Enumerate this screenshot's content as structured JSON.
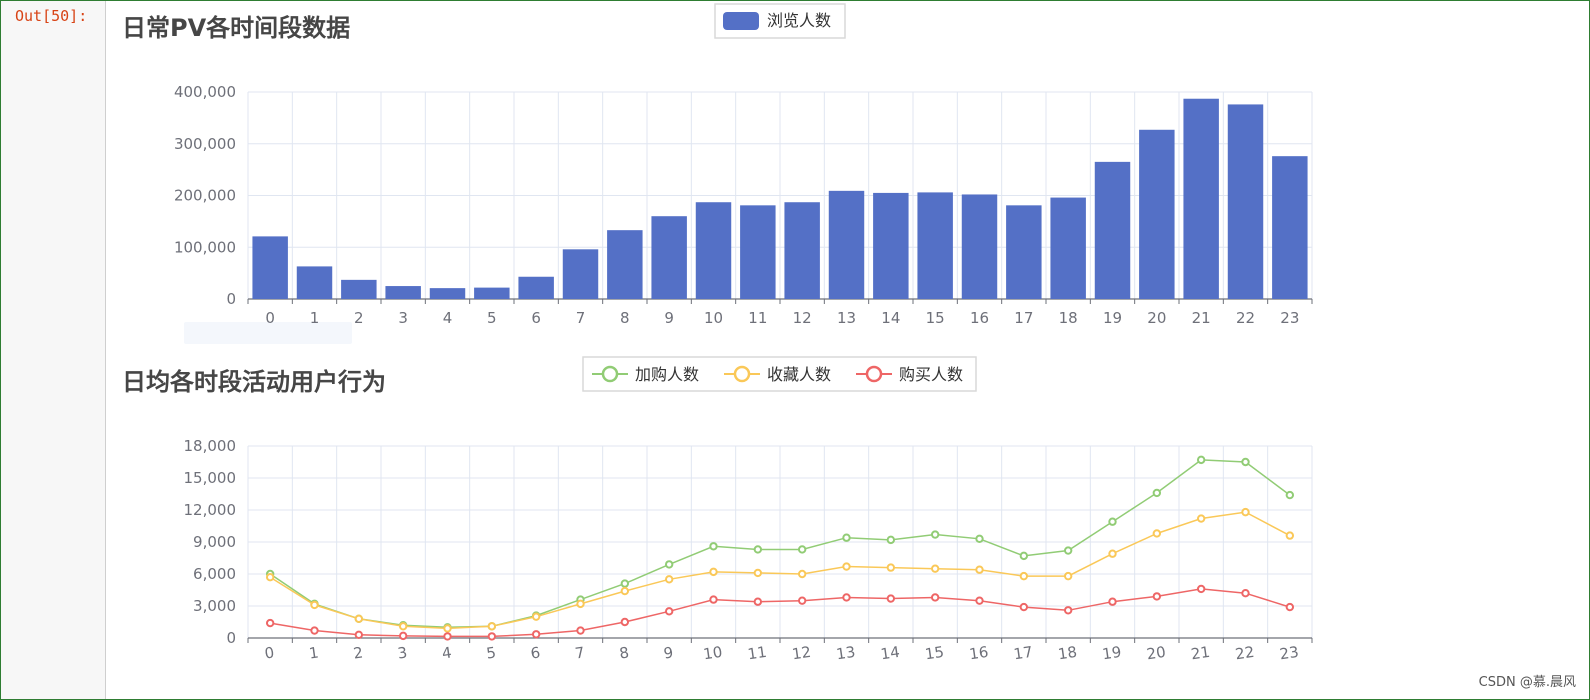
{
  "notebook": {
    "prompt": "Out[50]:"
  },
  "watermark": "CSDN @慕.晨风",
  "colors": {
    "bar": "#5470c6",
    "cart": "#91cc75",
    "favorite": "#fac858",
    "purchase": "#ee6666",
    "grid": "#e0e6f1",
    "axis": "#6e7079"
  },
  "chart_data": [
    {
      "type": "bar",
      "title": "日常PV各时间段数据",
      "legend_position": "top-center",
      "grid": true,
      "categories": [
        "0",
        "1",
        "2",
        "3",
        "4",
        "5",
        "6",
        "7",
        "8",
        "9",
        "10",
        "11",
        "12",
        "13",
        "14",
        "15",
        "16",
        "17",
        "18",
        "19",
        "20",
        "21",
        "22",
        "23"
      ],
      "series": [
        {
          "name": "浏览人数",
          "values": [
            121000,
            63000,
            37000,
            25000,
            21000,
            22000,
            43000,
            96000,
            133000,
            160000,
            187000,
            181000,
            187000,
            209000,
            205000,
            206000,
            202000,
            181000,
            196000,
            265000,
            327000,
            387000,
            376000,
            276000
          ]
        }
      ],
      "ylim": [
        0,
        400000
      ],
      "yticks": [
        "0",
        "100,000",
        "200,000",
        "300,000",
        "400,000"
      ]
    },
    {
      "type": "line",
      "title": "日均各时段活动用户行为",
      "legend_position": "top-center",
      "grid": true,
      "categories": [
        "0",
        "1",
        "2",
        "3",
        "4",
        "5",
        "6",
        "7",
        "8",
        "9",
        "10",
        "11",
        "12",
        "13",
        "14",
        "15",
        "16",
        "17",
        "18",
        "19",
        "20",
        "21",
        "22",
        "23"
      ],
      "series": [
        {
          "name": "加购人数",
          "values": [
            6000,
            3200,
            1800,
            1200,
            1000,
            1100,
            2100,
            3600,
            5100,
            6900,
            8600,
            8300,
            8300,
            9400,
            9200,
            9700,
            9300,
            7700,
            8200,
            10900,
            13600,
            16700,
            16500,
            13400
          ]
        },
        {
          "name": "收藏人数",
          "values": [
            5700,
            3100,
            1800,
            1100,
            900,
            1100,
            2000,
            3200,
            4400,
            5500,
            6200,
            6100,
            6000,
            6700,
            6600,
            6500,
            6400,
            5800,
            5800,
            7900,
            9800,
            11200,
            11800,
            9600
          ]
        },
        {
          "name": "购买人数",
          "values": [
            1400,
            700,
            300,
            200,
            150,
            150,
            350,
            700,
            1500,
            2500,
            3600,
            3400,
            3500,
            3800,
            3700,
            3800,
            3500,
            2900,
            2600,
            3400,
            3900,
            4600,
            4200,
            2900
          ]
        }
      ],
      "ylim": [
        0,
        18000
      ],
      "yticks": [
        "0",
        "3,000",
        "6,000",
        "9,000",
        "12,000",
        "15,000",
        "18,000"
      ]
    }
  ]
}
